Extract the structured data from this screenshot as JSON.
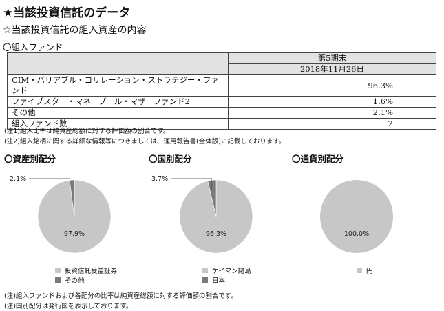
{
  "title": "★当該投資信託のデータ",
  "subtitle": "☆当該投資信託の組入資産の内容",
  "fund_heading": "〇組入ファンド",
  "table": {
    "period": "第5期末",
    "date": "2018年11月26日",
    "rows": [
      {
        "name": "CIM・バリアブル・コリレーション・ストラテジー・ファンド",
        "value": "96.3%"
      },
      {
        "name": "ファイブスター・マネープール・マザーファンド2",
        "value": "1.6%"
      },
      {
        "name": "その他",
        "value": "2.1%"
      },
      {
        "name": "組入ファンド数",
        "value": "2"
      }
    ]
  },
  "notes": [
    "(注1)組入比率は純資産総額に対する評価額の割合です。",
    "(注2)組入銘柄に関する詳細な情報等につきましては、運用報告書(全体版)に記載しております。"
  ],
  "colors": {
    "major": "#c7c7c7",
    "minor": "#7a7a7a",
    "border": "#444444"
  },
  "chart_data": [
    {
      "type": "pie",
      "title": "〇資産別配分",
      "labels": [
        "投資信託受益証券",
        "その他"
      ],
      "values": [
        97.9,
        2.1
      ],
      "value_labels": [
        "97.9%",
        "2.1%"
      ]
    },
    {
      "type": "pie",
      "title": "〇国別配分",
      "labels": [
        "ケイマン諸島",
        "日本"
      ],
      "values": [
        96.3,
        3.7
      ],
      "value_labels": [
        "96.3%",
        "3.7%"
      ]
    },
    {
      "type": "pie",
      "title": "〇通貨別配分",
      "labels": [
        "円"
      ],
      "values": [
        100.0
      ],
      "value_labels": [
        "100.0%"
      ]
    }
  ],
  "footnotes": [
    "(注)組入ファンドおよび各配分の比率は純資産総額に対する評価額の割合です。",
    "(注)国別配分は発行国を表示しております。"
  ]
}
